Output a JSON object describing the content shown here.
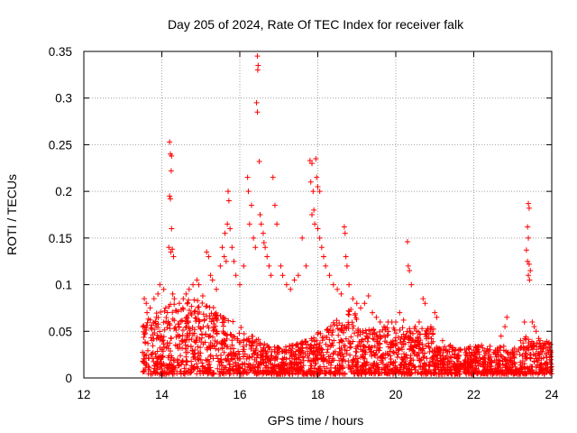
{
  "chart_data": {
    "type": "scatter",
    "title": "Day 205 of 2024, Rate Of TEC Index for receiver falk",
    "xlabel": "GPS time / hours",
    "ylabel": "ROTI / TECUs",
    "xlim": [
      12,
      24
    ],
    "ylim": [
      0,
      0.35
    ],
    "x_ticks": [
      "12",
      "14",
      "16",
      "18",
      "20",
      "22",
      "24"
    ],
    "y_ticks": [
      "0",
      "0.05",
      "0.1",
      "0.15",
      "0.2",
      "0.25",
      "0.3",
      "0.35"
    ],
    "grid": true,
    "marker": "plus",
    "color": "#ff0000",
    "series": [
      {
        "points": [
          [
            13.55,
            0.085
          ],
          [
            13.6,
            0.08
          ],
          [
            13.62,
            0.07
          ],
          [
            13.7,
            0.075
          ],
          [
            13.8,
            0.085
          ],
          [
            13.9,
            0.09
          ],
          [
            13.95,
            0.1
          ],
          [
            14.05,
            0.095
          ],
          [
            14.2,
            0.253
          ],
          [
            14.22,
            0.24
          ],
          [
            14.25,
            0.238
          ],
          [
            14.24,
            0.222
          ],
          [
            14.2,
            0.195
          ],
          [
            14.22,
            0.192
          ],
          [
            14.25,
            0.16
          ],
          [
            14.18,
            0.14
          ],
          [
            14.23,
            0.135
          ],
          [
            14.27,
            0.138
          ],
          [
            14.3,
            0.13
          ],
          [
            14.28,
            0.09
          ],
          [
            14.32,
            0.085
          ],
          [
            14.45,
            0.08
          ],
          [
            14.55,
            0.085
          ],
          [
            14.62,
            0.09
          ],
          [
            14.7,
            0.095
          ],
          [
            14.8,
            0.1
          ],
          [
            14.9,
            0.105
          ],
          [
            14.95,
            0.1
          ],
          [
            15.05,
            0.088
          ],
          [
            15.15,
            0.135
          ],
          [
            15.2,
            0.13
          ],
          [
            15.25,
            0.11
          ],
          [
            15.3,
            0.105
          ],
          [
            15.4,
            0.095
          ],
          [
            15.5,
            0.12
          ],
          [
            15.55,
            0.14
          ],
          [
            15.6,
            0.13
          ],
          [
            15.65,
            0.125
          ],
          [
            15.7,
            0.2
          ],
          [
            15.72,
            0.19
          ],
          [
            15.68,
            0.165
          ],
          [
            15.75,
            0.16
          ],
          [
            15.62,
            0.155
          ],
          [
            15.8,
            0.14
          ],
          [
            15.85,
            0.125
          ],
          [
            15.9,
            0.11
          ],
          [
            16.0,
            0.1
          ],
          [
            16.1,
            0.12
          ],
          [
            16.2,
            0.215
          ],
          [
            16.22,
            0.2
          ],
          [
            16.3,
            0.185
          ],
          [
            16.25,
            0.165
          ],
          [
            16.35,
            0.15
          ],
          [
            16.4,
            0.14
          ],
          [
            16.45,
            0.345
          ],
          [
            16.47,
            0.335
          ],
          [
            16.46,
            0.33
          ],
          [
            16.43,
            0.295
          ],
          [
            16.45,
            0.285
          ],
          [
            16.5,
            0.232
          ],
          [
            16.52,
            0.175
          ],
          [
            16.55,
            0.165
          ],
          [
            16.6,
            0.155
          ],
          [
            16.62,
            0.145
          ],
          [
            16.65,
            0.14
          ],
          [
            16.7,
            0.13
          ],
          [
            16.75,
            0.12
          ],
          [
            16.8,
            0.11
          ],
          [
            16.85,
            0.215
          ],
          [
            16.9,
            0.185
          ],
          [
            16.95,
            0.165
          ],
          [
            17.05,
            0.12
          ],
          [
            17.1,
            0.11
          ],
          [
            17.2,
            0.1
          ],
          [
            17.3,
            0.095
          ],
          [
            17.4,
            0.105
          ],
          [
            17.5,
            0.11
          ],
          [
            17.6,
            0.15
          ],
          [
            17.7,
            0.12
          ],
          [
            17.8,
            0.233
          ],
          [
            17.85,
            0.23
          ],
          [
            17.82,
            0.21
          ],
          [
            17.88,
            0.2
          ],
          [
            17.9,
            0.18
          ],
          [
            17.85,
            0.175
          ],
          [
            17.95,
            0.235
          ],
          [
            17.97,
            0.215
          ],
          [
            18.0,
            0.205
          ],
          [
            18.05,
            0.2
          ],
          [
            17.92,
            0.165
          ],
          [
            18.0,
            0.16
          ],
          [
            18.05,
            0.15
          ],
          [
            18.1,
            0.14
          ],
          [
            18.15,
            0.13
          ],
          [
            18.2,
            0.12
          ],
          [
            18.3,
            0.11
          ],
          [
            18.4,
            0.1
          ],
          [
            18.5,
            0.095
          ],
          [
            18.6,
            0.09
          ],
          [
            18.68,
            0.162
          ],
          [
            18.7,
            0.155
          ],
          [
            18.72,
            0.13
          ],
          [
            18.75,
            0.12
          ],
          [
            18.8,
            0.1
          ],
          [
            18.9,
            0.085
          ],
          [
            19.0,
            0.08
          ],
          [
            19.1,
            0.075
          ],
          [
            19.2,
            0.08
          ],
          [
            19.3,
            0.088
          ],
          [
            19.4,
            0.07
          ],
          [
            19.5,
            0.065
          ],
          [
            19.6,
            0.06
          ],
          [
            19.7,
            0.055
          ],
          [
            19.8,
            0.06
          ],
          [
            19.9,
            0.06
          ],
          [
            20.0,
            0.06
          ],
          [
            20.1,
            0.07
          ],
          [
            20.2,
            0.062
          ],
          [
            20.3,
            0.146
          ],
          [
            20.32,
            0.12
          ],
          [
            20.35,
            0.115
          ],
          [
            20.4,
            0.1
          ],
          [
            20.5,
            0.055
          ],
          [
            20.6,
            0.06
          ],
          [
            20.7,
            0.085
          ],
          [
            20.75,
            0.08
          ],
          [
            20.8,
            0.05
          ],
          [
            20.9,
            0.055
          ],
          [
            21.0,
            0.07
          ],
          [
            21.05,
            0.065
          ],
          [
            21.2,
            0.04
          ],
          [
            21.4,
            0.035
          ],
          [
            21.6,
            0.03
          ],
          [
            21.8,
            0.025
          ],
          [
            22.0,
            0.03
          ],
          [
            22.2,
            0.035
          ],
          [
            22.4,
            0.025
          ],
          [
            22.6,
            0.03
          ],
          [
            22.7,
            0.045
          ],
          [
            22.8,
            0.055
          ],
          [
            22.85,
            0.065
          ],
          [
            23.0,
            0.03
          ],
          [
            23.2,
            0.04
          ],
          [
            23.3,
            0.06
          ],
          [
            23.4,
            0.187
          ],
          [
            23.42,
            0.182
          ],
          [
            23.38,
            0.162
          ],
          [
            23.4,
            0.15
          ],
          [
            23.35,
            0.137
          ],
          [
            23.38,
            0.125
          ],
          [
            23.42,
            0.122
          ],
          [
            23.45,
            0.115
          ],
          [
            23.4,
            0.11
          ],
          [
            23.43,
            0.105
          ],
          [
            23.5,
            0.06
          ],
          [
            23.55,
            0.055
          ],
          [
            23.6,
            0.05
          ],
          [
            23.7,
            0.04
          ],
          [
            23.8,
            0.035
          ],
          [
            23.9,
            0.03
          ]
        ]
      }
    ]
  }
}
